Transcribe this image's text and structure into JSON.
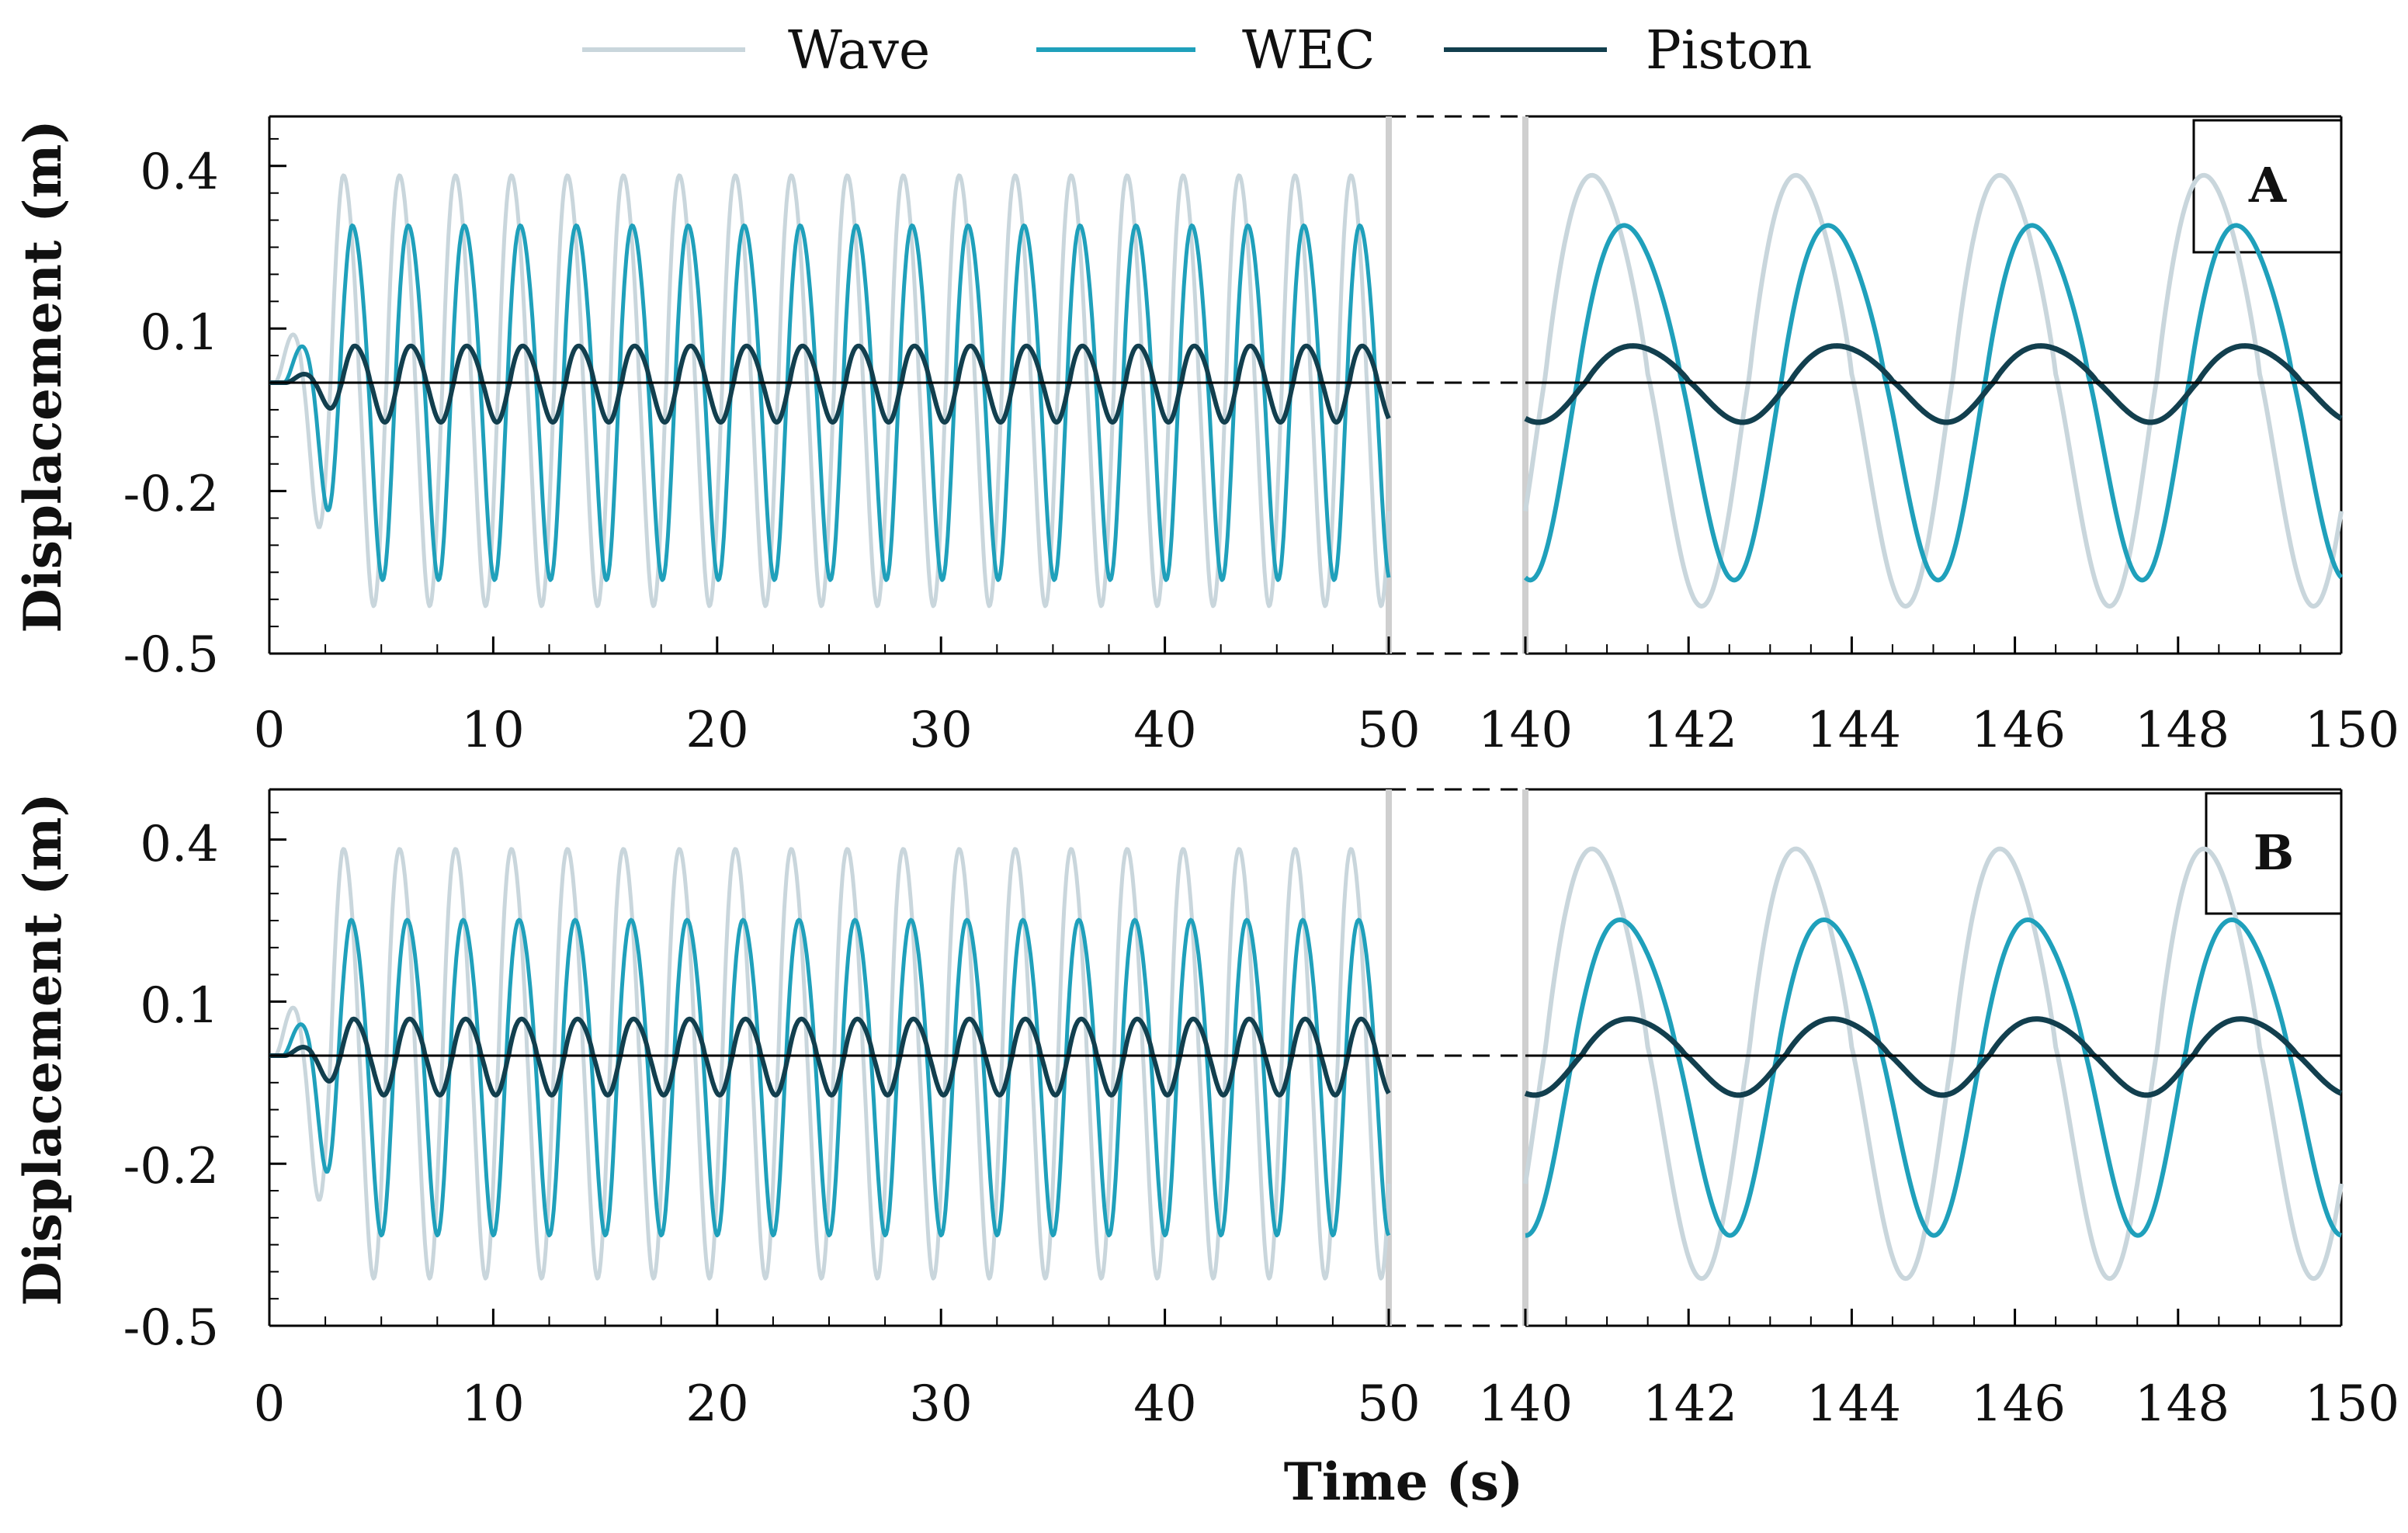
{
  "chart_data": {
    "type": "line",
    "x_label": "Time (s)",
    "y_label": "Displacement (m)",
    "legend": [
      "Wave",
      "WEC",
      "Piston"
    ],
    "colors": {
      "Wave": "#c9d6dc",
      "WEC": "#1fa0bb",
      "Piston": "#123f4e",
      "zero_line": "#000000",
      "axis": "#000000",
      "break_line": "#cfcfcf"
    },
    "x_ranges": [
      [
        0,
        50
      ],
      [
        140,
        150
      ]
    ],
    "x_ticks_left": [
      "0",
      "10",
      "20",
      "30",
      "40",
      "50"
    ],
    "x_ticks_right": [
      "140",
      "142",
      "144",
      "146",
      "148",
      "150"
    ],
    "y_range": [
      -0.5,
      0.5
    ],
    "y_ticks": [
      "0.4",
      "0.1",
      "-0.2",
      "-0.5"
    ],
    "y_tick_values": [
      0.4,
      0.1,
      -0.2,
      -0.5
    ],
    "panels": [
      {
        "label": "A",
        "series": [
          {
            "name": "Wave",
            "amplitude": 0.395,
            "period_s": 2.5,
            "ramp_s": 3
          },
          {
            "name": "WEC",
            "peak": 0.3,
            "trough": -0.35,
            "phase_lag_s": 0.4
          },
          {
            "name": "Piston",
            "peak": 0.07,
            "trough": -0.07,
            "phase_lag_s": 0.5
          }
        ]
      },
      {
        "label": "B",
        "series": [
          {
            "name": "Wave",
            "amplitude": 0.395,
            "period_s": 2.5,
            "ramp_s": 3
          },
          {
            "name": "WEC",
            "peak": 0.26,
            "trough": -0.32,
            "phase_lag_s": 0.35
          },
          {
            "name": "Piston",
            "peak": 0.07,
            "trough": -0.07,
            "phase_lag_s": 0.45
          }
        ]
      }
    ]
  }
}
